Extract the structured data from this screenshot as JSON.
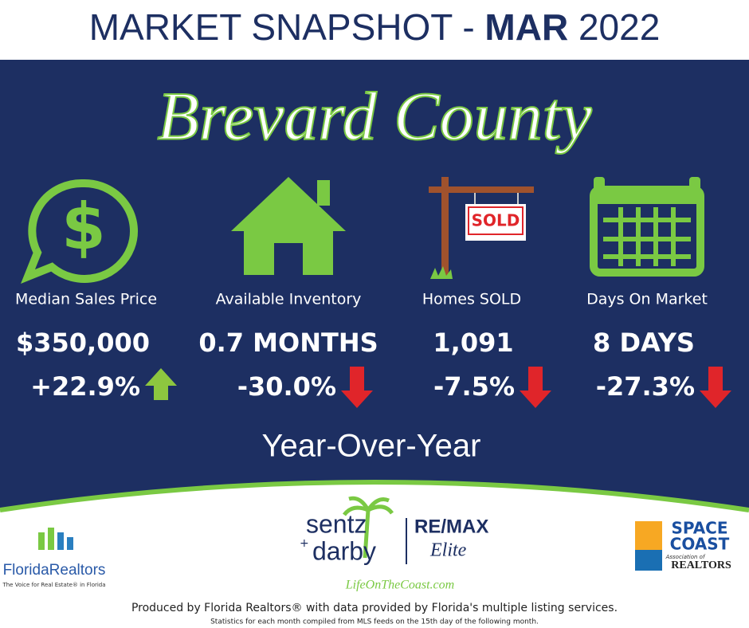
{
  "header": {
    "title_prefix": "MARKET SNAPSHOT - ",
    "title_month": "MAR",
    "title_year": " 2022"
  },
  "county": "Brevard County",
  "metrics": [
    {
      "label": "Median Sales Price",
      "value": "$350,000",
      "change": "+22.9%"
    },
    {
      "label": "Available Inventory",
      "value": "0.7 MONTHS",
      "change": "-30.0%"
    },
    {
      "label": "Homes SOLD",
      "value": "1,091",
      "change": "-7.5%"
    },
    {
      "label": "Days On Market",
      "value": "8 DAYS",
      "change": "-27.3%"
    }
  ],
  "sold_sign": "SOLD",
  "comparison": "Year-Over-Year",
  "logos": {
    "florida_realtors": {
      "name": "FloridaRealtors",
      "tagline": "The Voice for Real Estate® in Florida"
    },
    "sentz_darby": {
      "line1": "sentz",
      "plus": "+",
      "line2": "darby",
      "brand": "RE/MAX",
      "office": "Elite",
      "site": "LifeOnTheCoast.com"
    },
    "space_coast": {
      "line1": "SPACE",
      "line2": "COAST",
      "assoc": "Association of",
      "realtors": "REALTORS"
    }
  },
  "footer": {
    "line1": "Produced by Florida Realtors® with data provided by Florida's multiple listing services.",
    "line2": "Statistics for each month compiled from MLS feeds on the 15th day of the following month."
  }
}
